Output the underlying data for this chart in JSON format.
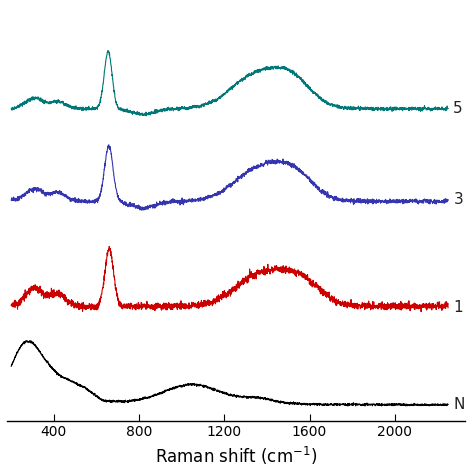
{
  "x_min": 200,
  "x_max": 2250,
  "x_ticks": [
    400,
    800,
    1200,
    1600,
    2000
  ],
  "xlabel_math": "Raman shift (cm$^{-1}$)",
  "background_color": "#ffffff",
  "line_labels": [
    "N",
    "1",
    "3",
    "5"
  ],
  "line_colors": [
    "#000000",
    "#cc0000",
    "#3535b0",
    "#007878"
  ],
  "seed": 42,
  "noise_scale_fine": 0.006,
  "noise_scale_coarse": 0.003
}
